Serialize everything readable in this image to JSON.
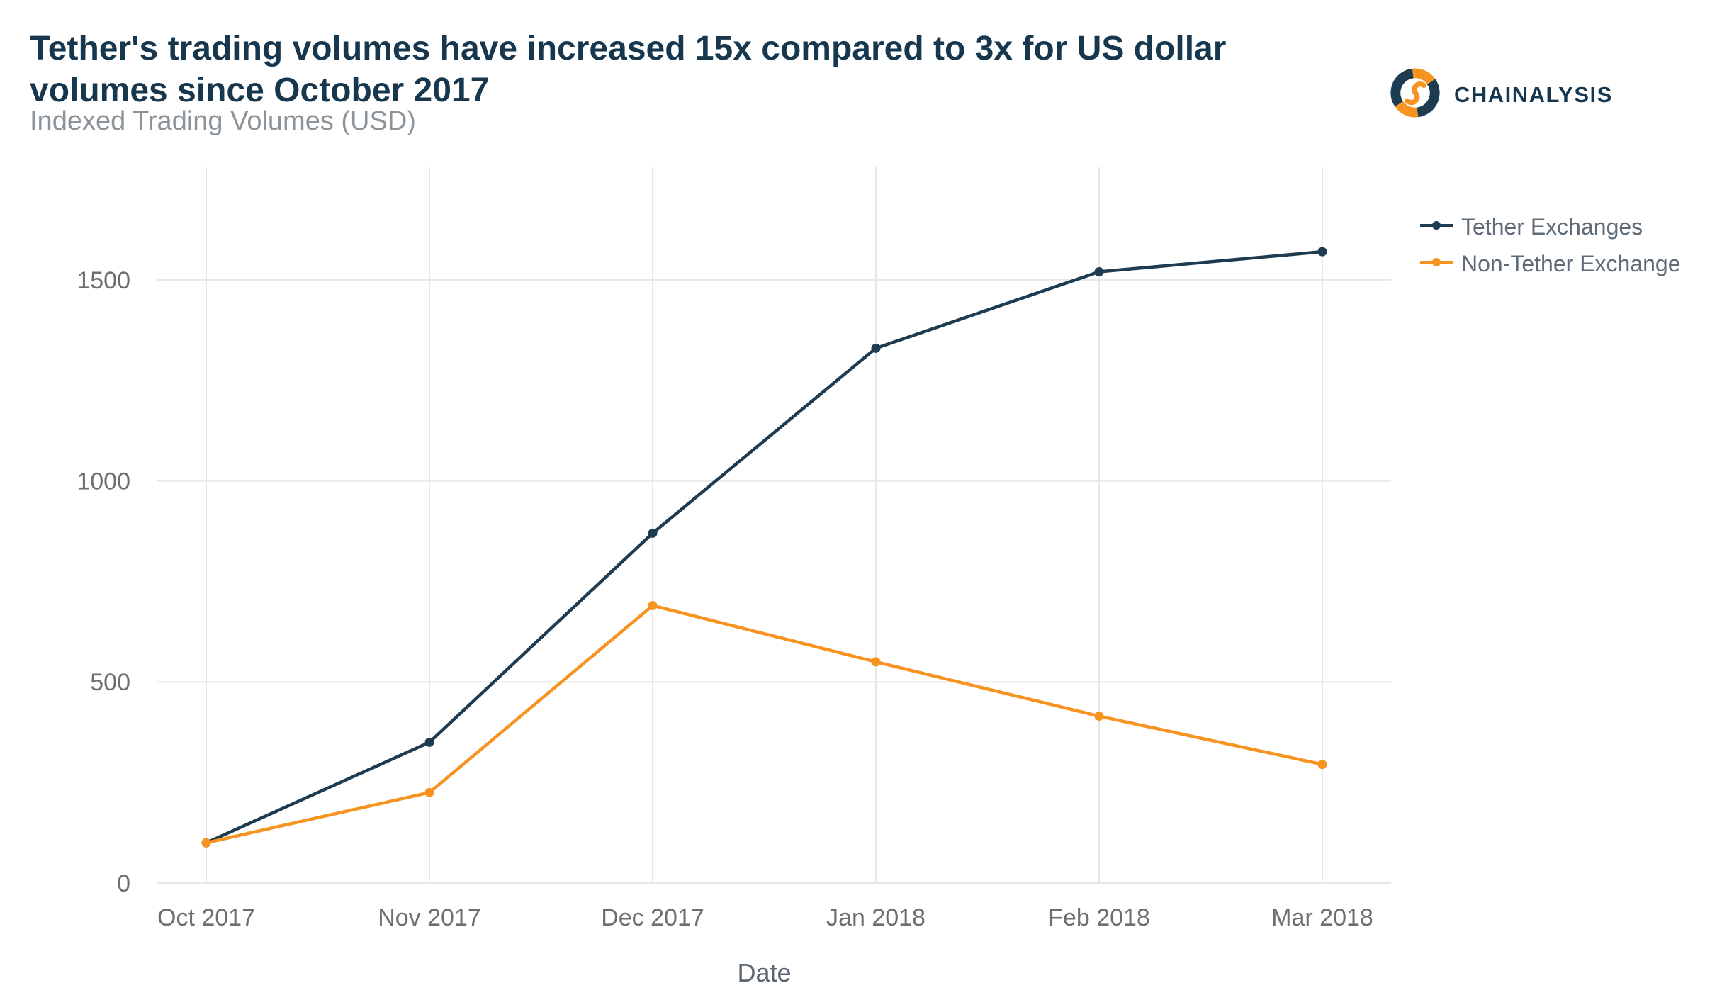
{
  "header": {
    "title": "Tether's trading volumes have increased 15x compared to 3x for US dollar volumes since October 2017",
    "subtitle": "Indexed Trading Volumes (USD)",
    "brand_name": "CHAINALYSIS"
  },
  "chart_data": {
    "type": "line",
    "title": "Indexed Trading Volumes (USD)",
    "xlabel": "Date",
    "ylabel": "",
    "categories": [
      "Oct 2017",
      "Nov 2017",
      "Dec 2017",
      "Jan 2018",
      "Feb 2018",
      "Mar 2018"
    ],
    "series": [
      {
        "name": "Tether Exchanges",
        "color": "#1d3c51",
        "values": [
          100,
          350,
          870,
          1330,
          1520,
          1570
        ]
      },
      {
        "name": "Non-Tether Exchange",
        "color": "#f79421",
        "values": [
          100,
          225,
          690,
          550,
          415,
          295
        ]
      }
    ],
    "ylim": [
      0,
      1780
    ],
    "yticks": [
      0,
      500,
      1000,
      1500
    ],
    "grid": true,
    "legend_position": "top-right"
  },
  "colors": {
    "title_text": "#17374e",
    "subtitle_text": "#8d9499",
    "axis_text": "#6e6e6e",
    "grid_line": "#e7e7e7",
    "legend_text": "#5f6b76",
    "tether_line": "#1d3c51",
    "non_tether_line": "#f79421"
  }
}
